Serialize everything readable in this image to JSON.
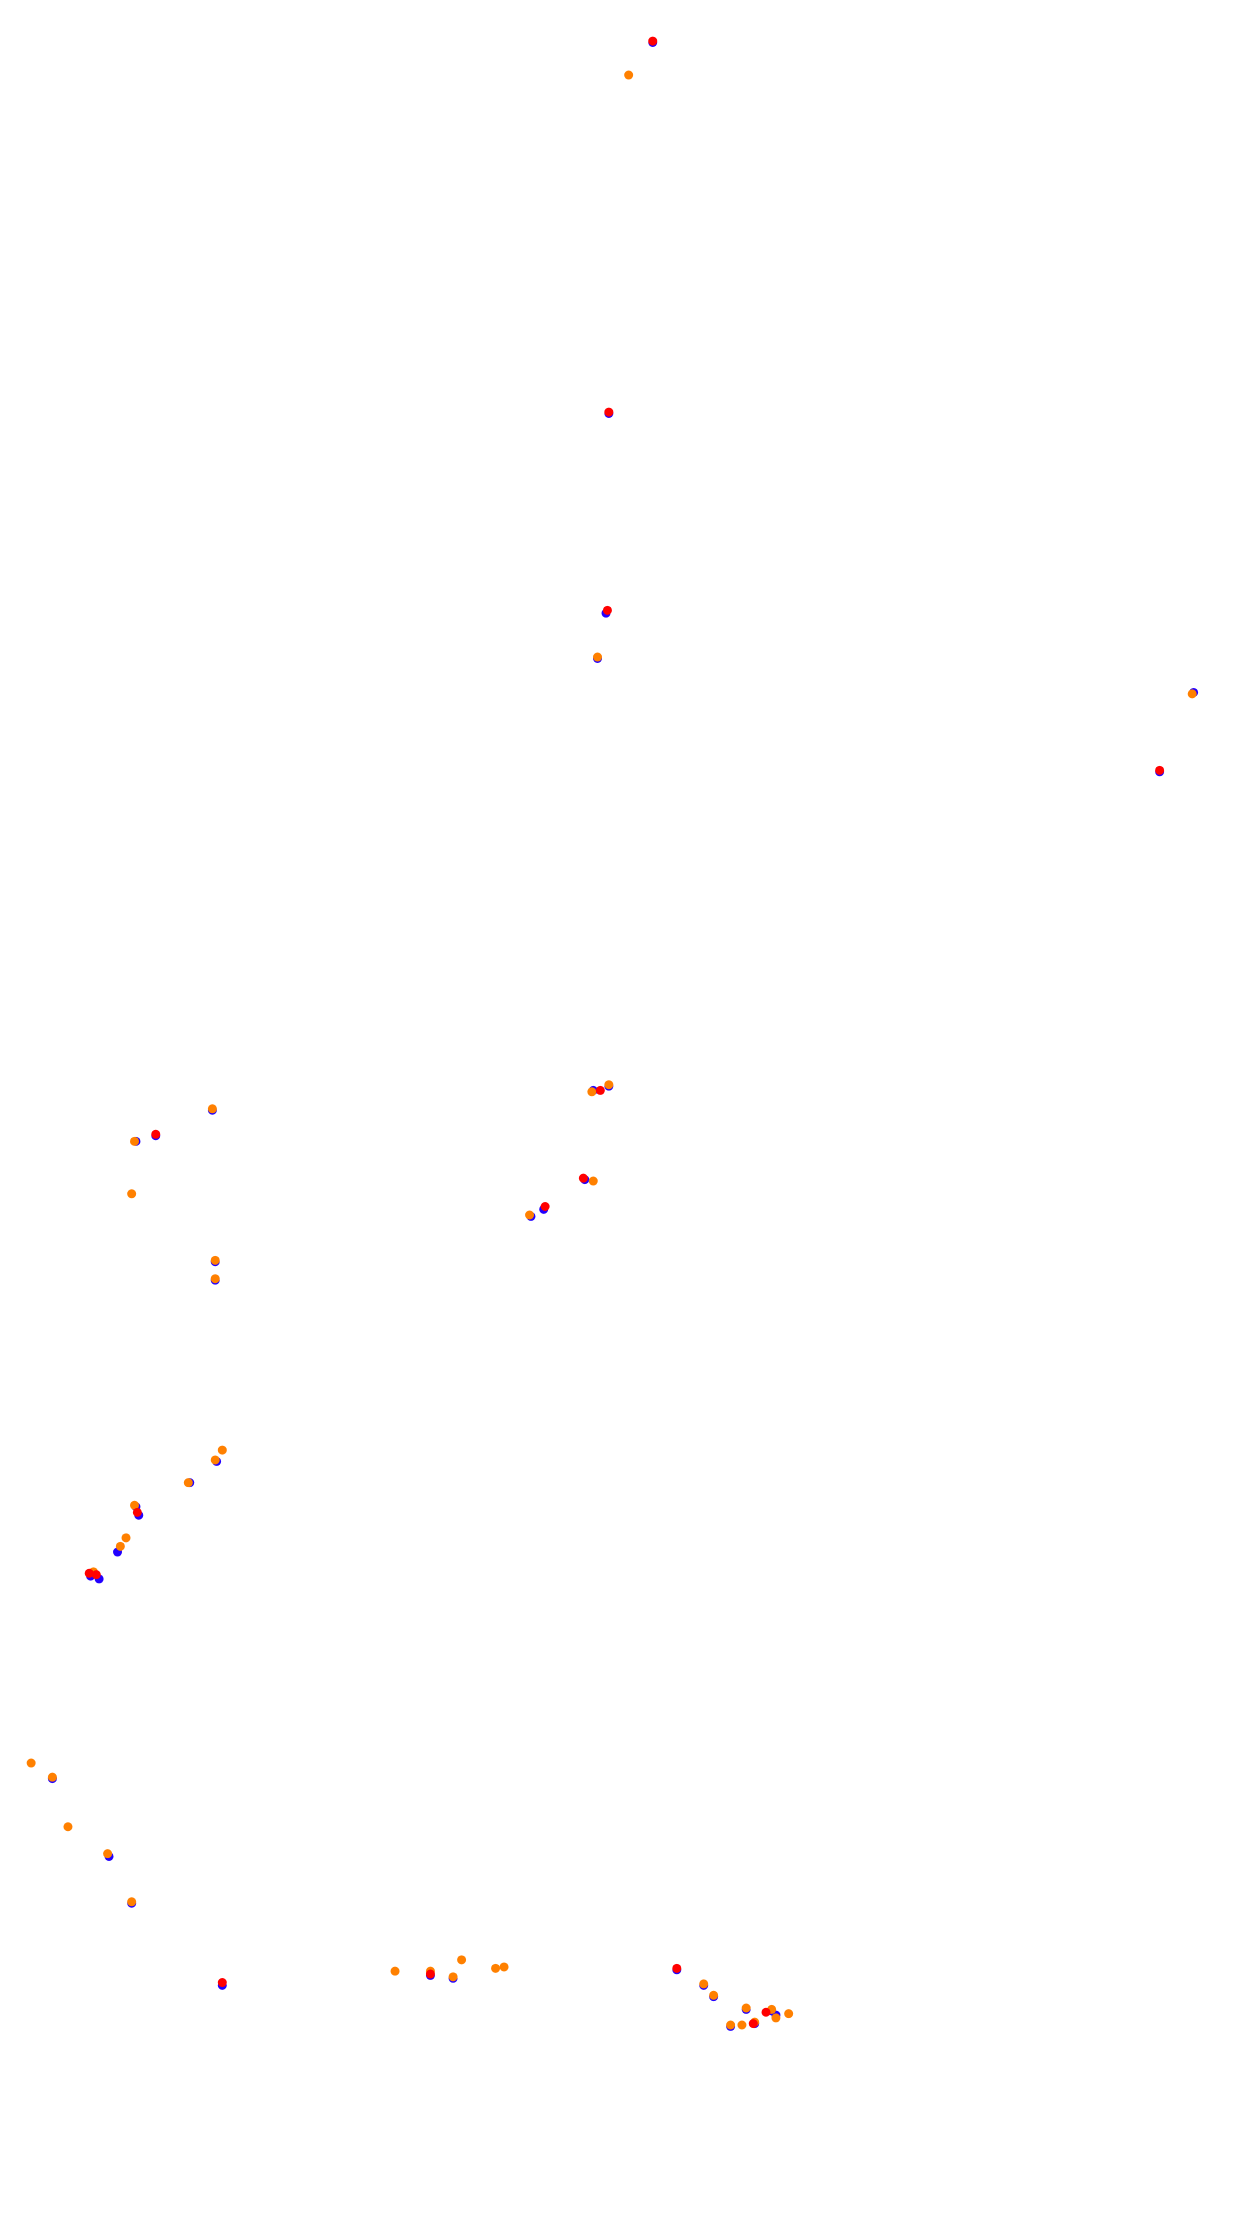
{
  "chart_data": {
    "type": "scatter",
    "xlim": [
      0,
      880
    ],
    "ylim": [
      1567,
      0
    ],
    "series": [
      {
        "color": "#2200ff",
        "x": [
          461,
          430,
          428,
          819,
          843,
          422,
          430,
          419,
          413,
          384,
          375,
          150,
          96,
          110,
          152,
          152,
          153,
          134,
          96,
          98,
          83,
          64,
          70,
          37,
          77,
          93,
          157,
          304,
          320,
          478,
          497,
          504,
          527,
          516,
          533,
          548,
          545
        ],
        "values": [
          30,
          292,
          433,
          545,
          489,
          465,
          767,
          770,
          833,
          854,
          859,
          784,
          806,
          802,
          891,
          904,
          1032,
          1047,
          1064,
          1070,
          1096,
          1113,
          1115,
          1256,
          1311,
          1344,
          1402,
          1395,
          1397,
          1391,
          1402,
          1410,
          1419,
          1431,
          1429,
          1423,
          1420
        ]
      },
      {
        "color": "#ff8000",
        "x": [
          444,
          422,
          842,
          418,
          430,
          419,
          374,
          150,
          95,
          93,
          152,
          152,
          157,
          152,
          133,
          95,
          89,
          85,
          66,
          22,
          37,
          48,
          76,
          93,
          279,
          326,
          320,
          304,
          350,
          356,
          497,
          504,
          527,
          516,
          524,
          533,
          545,
          557,
          548
        ],
        "values": [
          53,
          464,
          490,
          771,
          766,
          834,
          858,
          783,
          806,
          843,
          890,
          903,
          1024,
          1031,
          1047,
          1063,
          1086,
          1092,
          1110,
          1245,
          1255,
          1290,
          1309,
          1343,
          1392,
          1384,
          1396,
          1392,
          1390,
          1389,
          1401,
          1409,
          1418,
          1430,
          1430,
          1428,
          1419,
          1422,
          1425
        ]
      },
      {
        "color": "#ff0000",
        "x": [
          461,
          430,
          429,
          819,
          424,
          412,
          385,
          110,
          97,
          63,
          68,
          157,
          304,
          478,
          541,
          532
        ],
        "values": [
          29,
          291,
          431,
          544,
          770,
          832,
          852,
          801,
          1068,
          1111,
          1112,
          1400,
          1394,
          1390,
          1421,
          1429
        ]
      }
    ]
  }
}
